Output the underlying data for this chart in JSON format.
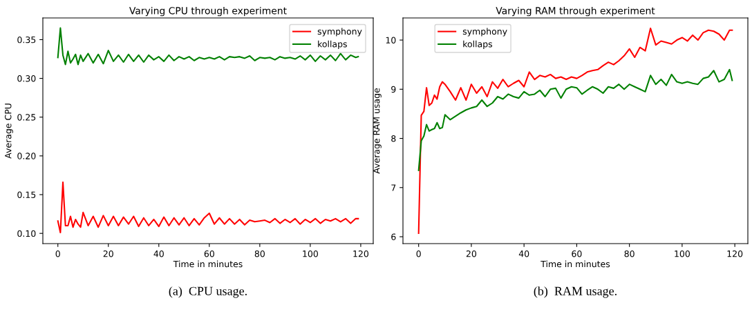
{
  "chart_data": [
    {
      "type": "line",
      "title": "Varying CPU through experiment",
      "xlabel": "Time in minutes",
      "ylabel": "Average CPU",
      "annotations": [
        "(a)  CPU usage."
      ],
      "xlim": [
        -5.95,
        124.95
      ],
      "xticks": [
        0,
        20,
        40,
        60,
        80,
        100,
        120
      ],
      "ylim": [
        0.0868,
        0.378
      ],
      "yticks": [
        {
          "value": 0.1,
          "label": "0.10"
        },
        {
          "value": 0.15,
          "label": "0.15"
        },
        {
          "value": 0.2,
          "label": "0.20"
        },
        {
          "value": 0.25,
          "label": "0.25"
        },
        {
          "value": 0.3,
          "label": "0.30"
        },
        {
          "value": 0.35,
          "label": "0.35"
        }
      ],
      "grid": false,
      "legend": "top right",
      "line_style": "solid",
      "series": [
        {
          "name": "symphony",
          "color": "#ff0000",
          "x": [
            0,
            1,
            2,
            3,
            4,
            5,
            6,
            7,
            8,
            9,
            10,
            12,
            14,
            16,
            18,
            20,
            22,
            24,
            26,
            28,
            30,
            32,
            34,
            36,
            38,
            40,
            42,
            44,
            46,
            48,
            50,
            52,
            54,
            56,
            58,
            60,
            62,
            64,
            66,
            68,
            70,
            72,
            74,
            76,
            78,
            80,
            82,
            84,
            86,
            88,
            90,
            92,
            94,
            96,
            98,
            100,
            102,
            104,
            106,
            108,
            110,
            112,
            114,
            116,
            118,
            119
          ],
          "values": [
            0.116,
            0.101,
            0.166,
            0.11,
            0.11,
            0.122,
            0.108,
            0.118,
            0.112,
            0.108,
            0.127,
            0.11,
            0.122,
            0.108,
            0.123,
            0.11,
            0.122,
            0.11,
            0.121,
            0.112,
            0.122,
            0.109,
            0.12,
            0.11,
            0.118,
            0.109,
            0.121,
            0.11,
            0.12,
            0.111,
            0.12,
            0.11,
            0.119,
            0.111,
            0.12,
            0.126,
            0.112,
            0.12,
            0.112,
            0.119,
            0.112,
            0.118,
            0.111,
            0.117,
            0.115,
            0.116,
            0.117,
            0.114,
            0.119,
            0.113,
            0.118,
            0.114,
            0.119,
            0.112,
            0.118,
            0.114,
            0.119,
            0.113,
            0.118,
            0.116,
            0.119,
            0.115,
            0.119,
            0.113,
            0.119,
            0.119
          ]
        },
        {
          "name": "kollaps",
          "color": "#008000",
          "x": [
            0,
            1,
            2,
            3,
            4,
            5,
            6,
            7,
            8,
            9,
            10,
            12,
            14,
            16,
            18,
            20,
            22,
            24,
            26,
            28,
            30,
            32,
            34,
            36,
            38,
            40,
            42,
            44,
            46,
            48,
            50,
            52,
            54,
            56,
            58,
            60,
            62,
            64,
            66,
            68,
            70,
            72,
            74,
            76,
            78,
            80,
            82,
            84,
            86,
            88,
            90,
            92,
            94,
            96,
            98,
            100,
            102,
            104,
            106,
            108,
            110,
            112,
            114,
            116,
            118,
            119
          ],
          "values": [
            0.327,
            0.365,
            0.33,
            0.318,
            0.335,
            0.32,
            0.325,
            0.331,
            0.318,
            0.33,
            0.322,
            0.332,
            0.32,
            0.331,
            0.319,
            0.336,
            0.322,
            0.33,
            0.321,
            0.331,
            0.322,
            0.33,
            0.321,
            0.33,
            0.324,
            0.328,
            0.322,
            0.33,
            0.323,
            0.328,
            0.325,
            0.328,
            0.323,
            0.327,
            0.325,
            0.327,
            0.325,
            0.328,
            0.324,
            0.328,
            0.327,
            0.328,
            0.326,
            0.329,
            0.323,
            0.327,
            0.326,
            0.327,
            0.324,
            0.328,
            0.326,
            0.327,
            0.325,
            0.329,
            0.324,
            0.33,
            0.322,
            0.329,
            0.324,
            0.33,
            0.323,
            0.332,
            0.324,
            0.33,
            0.327,
            0.328
          ]
        }
      ]
    },
    {
      "type": "line",
      "title": "Varying RAM through experiment",
      "xlabel": "Time in minutes",
      "ylabel": "Average RAM usage",
      "annotations": [
        "(b)  RAM usage."
      ],
      "xlim": [
        -5.95,
        124.95
      ],
      "xticks": [
        0,
        20,
        40,
        60,
        80,
        100,
        120
      ],
      "ylim": [
        5.86,
        10.45
      ],
      "yticks": [
        6,
        7,
        8,
        9,
        10
      ],
      "grid": false,
      "legend": "top left",
      "line_style": "solid",
      "series": [
        {
          "name": "symphony",
          "color": "#ff0000",
          "x": [
            0,
            1,
            2,
            3,
            4,
            5,
            6,
            7,
            8,
            9,
            10,
            12,
            14,
            16,
            18,
            20,
            22,
            24,
            26,
            28,
            30,
            32,
            34,
            36,
            38,
            40,
            42,
            44,
            46,
            48,
            50,
            52,
            54,
            56,
            58,
            60,
            62,
            64,
            66,
            68,
            70,
            72,
            74,
            76,
            78,
            80,
            82,
            84,
            86,
            88,
            90,
            92,
            94,
            96,
            98,
            100,
            102,
            104,
            106,
            108,
            110,
            112,
            114,
            116,
            118,
            119
          ],
          "values": [
            6.07,
            8.47,
            8.55,
            9.03,
            8.67,
            8.72,
            8.88,
            8.8,
            9.05,
            9.15,
            9.1,
            8.95,
            8.78,
            9.03,
            8.78,
            9.1,
            8.92,
            9.05,
            8.85,
            9.15,
            9.02,
            9.2,
            9.05,
            9.12,
            9.18,
            9.05,
            9.35,
            9.2,
            9.28,
            9.25,
            9.3,
            9.22,
            9.25,
            9.2,
            9.25,
            9.22,
            9.28,
            9.35,
            9.38,
            9.4,
            9.48,
            9.55,
            9.5,
            9.58,
            9.68,
            9.82,
            9.65,
            9.85,
            9.78,
            10.24,
            9.9,
            9.98,
            9.95,
            9.92,
            10.0,
            10.05,
            9.98,
            10.1,
            10.0,
            10.15,
            10.2,
            10.18,
            10.12,
            10.0,
            10.2,
            10.2
          ]
        },
        {
          "name": "kollaps",
          "color": "#008000",
          "x": [
            0,
            1,
            2,
            3,
            4,
            5,
            6,
            7,
            8,
            9,
            10,
            12,
            14,
            16,
            18,
            20,
            22,
            24,
            26,
            28,
            30,
            32,
            34,
            36,
            38,
            40,
            42,
            44,
            46,
            48,
            50,
            52,
            54,
            56,
            58,
            60,
            62,
            64,
            66,
            68,
            70,
            72,
            74,
            76,
            78,
            80,
            82,
            84,
            86,
            88,
            90,
            92,
            94,
            96,
            98,
            100,
            102,
            104,
            106,
            108,
            110,
            112,
            114,
            116,
            118,
            119
          ],
          "values": [
            7.35,
            7.95,
            8.05,
            8.28,
            8.15,
            8.18,
            8.2,
            8.32,
            8.2,
            8.22,
            8.48,
            8.38,
            8.45,
            8.52,
            8.58,
            8.62,
            8.65,
            8.78,
            8.65,
            8.72,
            8.85,
            8.8,
            8.9,
            8.85,
            8.82,
            8.95,
            8.88,
            8.9,
            8.98,
            8.85,
            9.0,
            9.02,
            8.82,
            9.0,
            9.05,
            9.03,
            8.9,
            8.98,
            9.05,
            9.0,
            8.92,
            9.05,
            9.02,
            9.1,
            9.0,
            9.1,
            9.05,
            9.0,
            8.95,
            9.28,
            9.1,
            9.2,
            9.08,
            9.3,
            9.15,
            9.12,
            9.15,
            9.12,
            9.1,
            9.22,
            9.25,
            9.38,
            9.15,
            9.2,
            9.4,
            9.18
          ]
        }
      ]
    }
  ]
}
